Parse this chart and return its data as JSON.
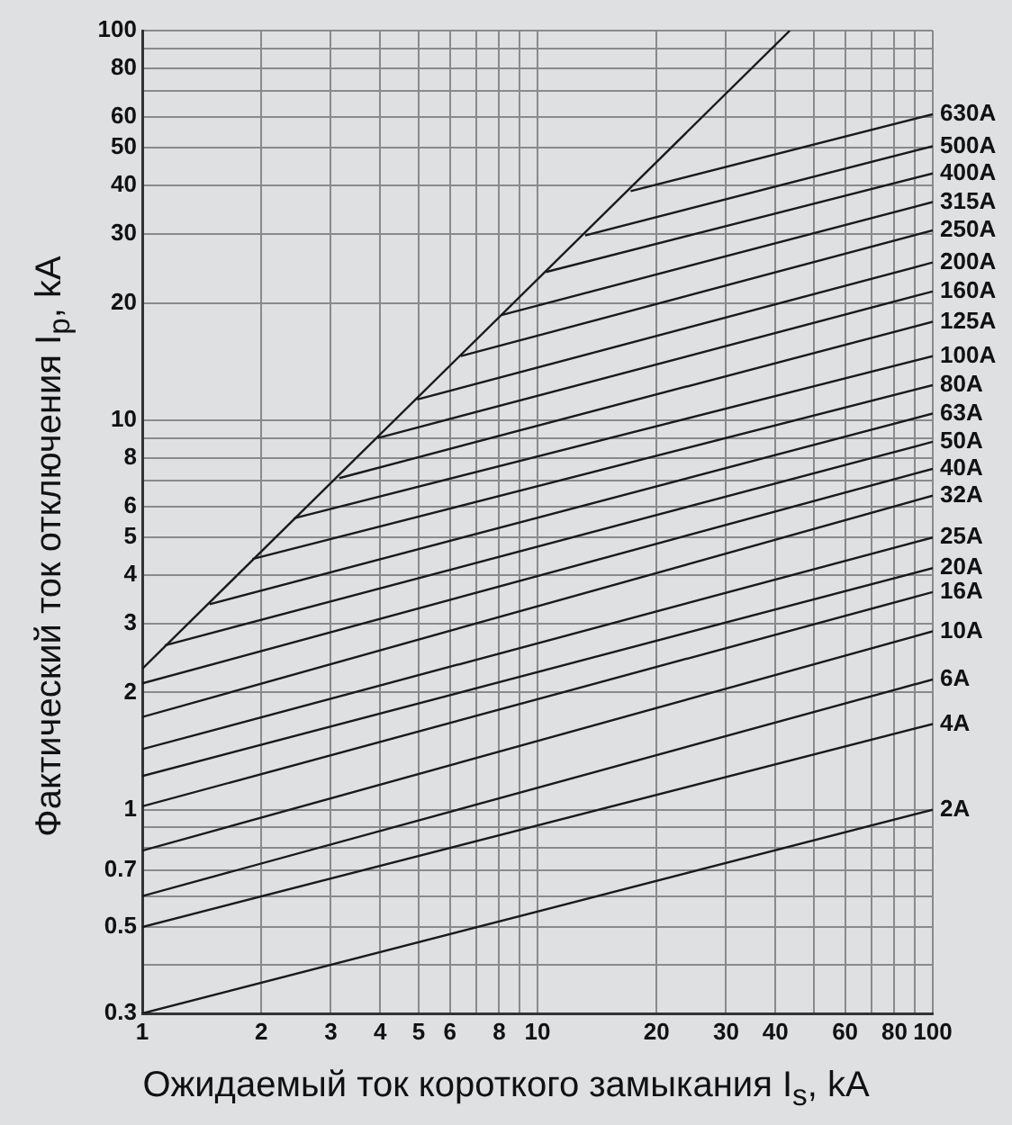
{
  "chart_data": {
    "type": "line",
    "xlabel": "Ожидаемый ток короткого замыкания  I$_{s}$, kA",
    "ylabel": "Фактический ток отключения  I$_{p}$, kA",
    "log": "xy",
    "grid": true,
    "legend": false,
    "marker": "none",
    "line_style": "solid",
    "xlim": [
      1,
      100
    ],
    "ylim": [
      0.3,
      100
    ],
    "xticks": [
      1,
      2,
      3,
      4,
      5,
      6,
      {
        "value": 7,
        "label": null
      },
      8,
      {
        "value": 9,
        "label": null
      },
      10,
      20,
      30,
      40,
      {
        "value": 50,
        "label": null
      },
      60,
      {
        "value": 70,
        "label": null
      },
      80,
      {
        "value": 90,
        "label": null
      },
      100
    ],
    "yticks": [
      0.3,
      {
        "value": 0.4,
        "label": null
      },
      0.5,
      {
        "value": 0.6,
        "label": null
      },
      0.7,
      {
        "value": 0.8,
        "label": null
      },
      {
        "value": 0.9,
        "label": null
      },
      1,
      2,
      3,
      4,
      5,
      6,
      {
        "value": 7,
        "label": null
      },
      8,
      {
        "value": 9,
        "label": null
      },
      10,
      20,
      30,
      40,
      50,
      60,
      {
        "value": 70,
        "label": null
      },
      80,
      {
        "value": 90,
        "label": null
      },
      100
    ],
    "series": [
      {
        "type": "line",
        "color": "#1a1a1a",
        "x": [
          1,
          43.5
        ],
        "values": [
          2.3,
          100
        ]
      },
      {
        "type": "line",
        "name": "630A",
        "color": "#1a1a1a",
        "x": [
          17.2,
          100
        ],
        "values": [
          38.7,
          61
        ]
      },
      {
        "type": "line",
        "name": "500A",
        "color": "#1a1a1a",
        "x": [
          13.2,
          100
        ],
        "values": [
          29.8,
          50.5
        ]
      },
      {
        "type": "line",
        "name": "400A",
        "color": "#1a1a1a",
        "x": [
          10.5,
          100
        ],
        "values": [
          24,
          43
        ]
      },
      {
        "type": "line",
        "name": "315A",
        "color": "#1a1a1a",
        "x": [
          8.1,
          100
        ],
        "values": [
          18.6,
          36.3
        ]
      },
      {
        "type": "line",
        "name": "250A",
        "color": "#1a1a1a",
        "x": [
          6.4,
          100
        ],
        "values": [
          14.6,
          30.7
        ]
      },
      {
        "type": "line",
        "name": "200A",
        "color": "#1a1a1a",
        "x": [
          4.96,
          100
        ],
        "values": [
          11.3,
          25.4
        ]
      },
      {
        "type": "line",
        "name": "160A",
        "color": "#1a1a1a",
        "x": [
          3.95,
          100
        ],
        "values": [
          9,
          21.4
        ]
      },
      {
        "type": "line",
        "name": "125A",
        "color": "#1a1a1a",
        "x": [
          3.15,
          100
        ],
        "values": [
          7.1,
          17.9
        ]
      },
      {
        "type": "line",
        "name": "100A",
        "color": "#1a1a1a",
        "x": [
          2.42,
          100
        ],
        "values": [
          5.6,
          14.6
        ]
      },
      {
        "type": "line",
        "name": "80A",
        "color": "#1a1a1a",
        "x": [
          1.9,
          100
        ],
        "values": [
          4.4,
          12.3
        ]
      },
      {
        "type": "line",
        "name": "63A",
        "color": "#1a1a1a",
        "x": [
          1.48,
          100
        ],
        "values": [
          3.37,
          10.4
        ]
      },
      {
        "type": "line",
        "name": "50A",
        "color": "#1a1a1a",
        "x": [
          1.14,
          100
        ],
        "values": [
          2.64,
          8.8
        ]
      },
      {
        "type": "line",
        "name": "40A",
        "color": "#1a1a1a",
        "x": [
          1,
          100
        ],
        "values": [
          2.11,
          7.5
        ]
      },
      {
        "type": "line",
        "name": "32A",
        "color": "#1a1a1a",
        "x": [
          1,
          100
        ],
        "values": [
          1.73,
          6.4
        ]
      },
      {
        "type": "line",
        "name": "25A",
        "color": "#1a1a1a",
        "x": [
          1,
          100
        ],
        "values": [
          1.43,
          5
        ]
      },
      {
        "type": "line",
        "name": "20A",
        "color": "#1a1a1a",
        "x": [
          1,
          100
        ],
        "values": [
          1.22,
          4.17
        ]
      },
      {
        "type": "line",
        "name": "16A",
        "color": "#1a1a1a",
        "x": [
          1,
          100
        ],
        "values": [
          1.02,
          3.62
        ]
      },
      {
        "type": "line",
        "name": "10A",
        "color": "#1a1a1a",
        "x": [
          1,
          100
        ],
        "values": [
          0.785,
          2.87
        ]
      },
      {
        "type": "line",
        "name": "6A",
        "color": "#1a1a1a",
        "x": [
          1,
          100
        ],
        "values": [
          0.6,
          2.16
        ]
      },
      {
        "type": "line",
        "name": "4A",
        "color": "#1a1a1a",
        "x": [
          1,
          100
        ],
        "values": [
          0.5,
          1.66
        ]
      },
      {
        "type": "line",
        "name": "2A",
        "color": "#1a1a1a",
        "x": [
          1,
          100
        ],
        "values": [
          0.3,
          1
        ]
      }
    ]
  }
}
